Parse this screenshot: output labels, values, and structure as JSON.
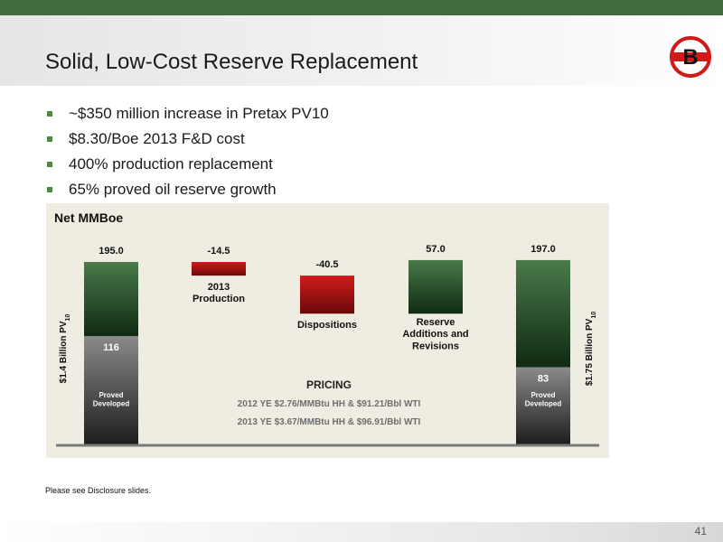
{
  "slide": {
    "title": "Solid, Low-Cost Reserve Replacement",
    "page_number": "41",
    "footnote": "Please see Disclosure slides.",
    "logo_letter": "B",
    "accent_color": "#3f6b3d",
    "bullets": [
      "~$350 million increase in Pretax PV10",
      "$8.30/Boe 2013 F&D cost",
      "400% production replacement",
      "65% proved oil reserve growth"
    ]
  },
  "chart_data": {
    "type": "bar",
    "subtype": "waterfall",
    "title": "Net MMBoe",
    "ylim": [
      0,
      210
    ],
    "categories": [
      "",
      "2013\nProduction",
      "Dispositions",
      "Reserve\nAdditions and\nRevisions",
      ""
    ],
    "values": [
      195.0,
      -14.5,
      -40.5,
      57.0,
      197.0
    ],
    "value_labels": [
      "195.0",
      "-14.5",
      "-40.5",
      "57.0",
      "197.0"
    ],
    "kinds": [
      "total",
      "decrease",
      "decrease",
      "increase",
      "total"
    ],
    "proved_developed": {
      "label": "Proved\nDeveloped",
      "values": [
        116,
        83
      ],
      "labels": [
        "116",
        "83"
      ]
    },
    "side_labels": {
      "left": {
        "text": "$1.4 Billion  PV",
        "sub": "10"
      },
      "right": {
        "text": "$1.75 Billion  PV",
        "sub": "10"
      }
    },
    "pricing": {
      "heading": "PRICING",
      "lines": [
        "2012 YE $2.76/MMBtu HH & $91.21/Bbl WTI",
        "2013 YE $3.67/MMBtu HH & $96.91/Bbl WTI"
      ]
    },
    "colors": {
      "green_top": "#4a7a4a",
      "green_bottom": "#0f2a12",
      "red_top": "#d11a1a",
      "red_bottom": "#6b0a0a",
      "gray_top": "#8a8a8a",
      "gray_bottom": "#1c1c1c"
    }
  }
}
